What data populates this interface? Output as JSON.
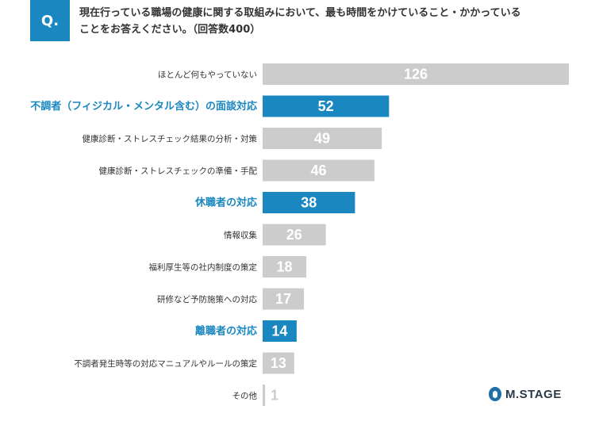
{
  "question": {
    "badge": "Q.",
    "line1": "現在行っている職場の健康に関する取組みにおいて、最も時間をかけていること・かかっている",
    "line2": "ことをお答えください。（回答数400）"
  },
  "logo": {
    "text": "M.STAGE"
  },
  "colors": {
    "highlight": "#1a87c0",
    "normal": "#cccccc",
    "label": "#333333"
  },
  "chart_data": {
    "type": "bar",
    "orientation": "horizontal",
    "categories": [
      "ほとんど何もやっていない",
      "不調者（フィジカル・メンタル含む）の面談対応",
      "健康診断・ストレスチェック結果の分析・対策",
      "健康診断・ストレスチェックの準備・手配",
      "休職者の対応",
      "情報収集",
      "福利厚生等の社内制度の策定",
      "研修など予防施策への対応",
      "離職者の対応",
      "不調者発生時等の対応マニュアルやルールの策定",
      "その他"
    ],
    "values": [
      126,
      52,
      49,
      46,
      38,
      26,
      18,
      17,
      14,
      13,
      1
    ],
    "highlighted": [
      false,
      true,
      false,
      false,
      true,
      false,
      false,
      false,
      true,
      false,
      false
    ],
    "xlim": [
      0,
      126
    ]
  }
}
